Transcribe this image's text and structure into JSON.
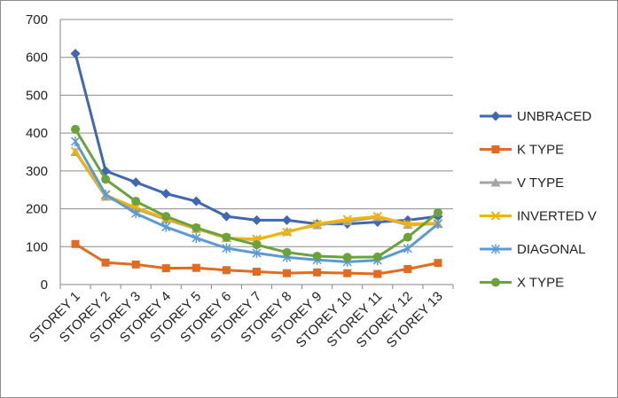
{
  "chart_data": {
    "type": "line",
    "title": "",
    "xlabel": "",
    "ylabel": "",
    "categories": [
      "STOREY 1",
      "STOREY 2",
      "STOREY 3",
      "STOREY 4",
      "STOREY 5",
      "STOREY 6",
      "STOREY 7",
      "STOREY 8",
      "STOREY 9",
      "STOREY 10",
      "STOREY 11",
      "STOREY 12",
      "STOREY 13"
    ],
    "ylim": [
      0,
      700
    ],
    "yticks": [
      0,
      100,
      200,
      300,
      400,
      500,
      600,
      700
    ],
    "grid": "horizontal",
    "legend_position": "right",
    "series": [
      {
        "name": "UNBRACED",
        "color": "#3F67B3",
        "marker": "diamond",
        "values": [
          610,
          300,
          270,
          240,
          220,
          180,
          170,
          170,
          160,
          160,
          165,
          170,
          180
        ]
      },
      {
        "name": "K TYPE",
        "color": "#E26B20",
        "marker": "square",
        "values": [
          107,
          58,
          53,
          43,
          44,
          38,
          34,
          30,
          32,
          30,
          28,
          41,
          57
        ]
      },
      {
        "name": "V TYPE",
        "color": "#A5A5A5",
        "marker": "triangle",
        "values": [
          350,
          232,
          200,
          172,
          147,
          123,
          118,
          140,
          157,
          167,
          178,
          158,
          160
        ]
      },
      {
        "name": "INVERTED V",
        "color": "#F5B400",
        "marker": "x",
        "values": [
          352,
          236,
          203,
          175,
          148,
          123,
          120,
          138,
          160,
          172,
          180,
          160,
          162
        ]
      },
      {
        "name": "DIAGONAL",
        "color": "#5B9BD5",
        "marker": "asterisk",
        "values": [
          378,
          238,
          188,
          152,
          123,
          96,
          83,
          72,
          65,
          60,
          64,
          95,
          160
        ]
      },
      {
        "name": "X TYPE",
        "color": "#6AA33C",
        "marker": "circle",
        "values": [
          410,
          278,
          220,
          180,
          150,
          125,
          105,
          85,
          75,
          72,
          73,
          125,
          190
        ]
      }
    ]
  }
}
